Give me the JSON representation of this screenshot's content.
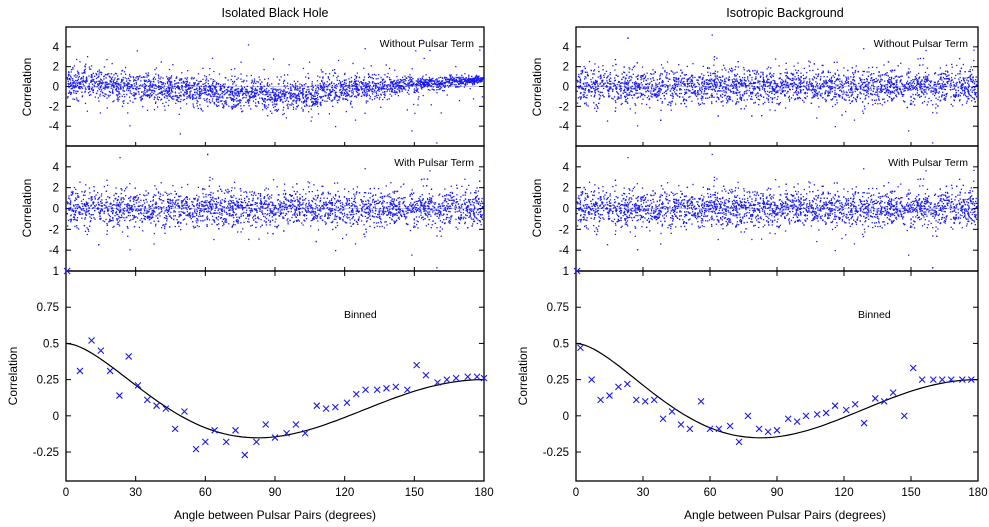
{
  "figure": {
    "xlabel": "Angle between Pulsar Pairs (degrees)",
    "ylabel": "Correlation"
  },
  "colors": {
    "points": "#1a1aee",
    "curve": "#000000",
    "axes": "#000000"
  },
  "chart_data": [
    {
      "column": "left",
      "title": "Isolated Black Hole",
      "panels": [
        {
          "type": "scatter",
          "label": "Without Pulsar Term",
          "xlim": [
            0,
            180
          ],
          "ylim": [
            -6,
            6
          ],
          "yticks": [
            4,
            2,
            0,
            -2,
            -4
          ],
          "xticks": [],
          "grid": false,
          "point_count": 3000,
          "point_note": "dense cloud of small points; spread ~±1.5 near 0 deg, dip toward -1.5 near 60-90 deg, converging to ~0.7 at 180 deg"
        },
        {
          "type": "scatter",
          "label": "With Pulsar Term",
          "xlim": [
            0,
            180
          ],
          "ylim": [
            -6,
            6
          ],
          "yticks": [
            4,
            2,
            0,
            -2,
            -4
          ],
          "xticks": [],
          "grid": false,
          "point_count": 3000
        },
        {
          "type": "scatter",
          "label": "Binned",
          "xlim": [
            0,
            180
          ],
          "ylim": [
            -0.45,
            1.0
          ],
          "yticks": [
            1,
            0.75,
            0.5,
            0.25,
            0,
            -0.25
          ],
          "yticklabels": [
            "1",
            "0.75",
            "0.5",
            "0.25",
            "0",
            "-0.25"
          ],
          "xticks": [
            0,
            30,
            60,
            90,
            120,
            150,
            180
          ],
          "grid": false,
          "series": [
            {
              "name": "binned",
              "marker": "x",
              "x": [
                0.5,
                6,
                11,
                15,
                19,
                23,
                27,
                31,
                35,
                39,
                43,
                47,
                51,
                56,
                60,
                64,
                69,
                73,
                77,
                82,
                86,
                90,
                95,
                99,
                103,
                108,
                112,
                116,
                121,
                125,
                129,
                134,
                138,
                142,
                147,
                151,
                155,
                160,
                164,
                168,
                173,
                177,
                180
              ],
              "y": [
                1.0,
                0.31,
                0.52,
                0.45,
                0.31,
                0.14,
                0.41,
                0.21,
                0.11,
                0.07,
                0.05,
                -0.09,
                0.03,
                -0.23,
                -0.18,
                -0.1,
                -0.18,
                -0.1,
                -0.27,
                -0.18,
                -0.06,
                -0.15,
                -0.12,
                -0.06,
                -0.12,
                0.07,
                0.05,
                0.06,
                0.09,
                0.15,
                0.18,
                0.18,
                0.19,
                0.2,
                0.18,
                0.35,
                0.28,
                0.23,
                0.25,
                0.26,
                0.27,
                0.27,
                0.26
              ]
            },
            {
              "name": "expected",
              "type": "line",
              "function": "Hellings-Downs"
            }
          ]
        }
      ]
    },
    {
      "column": "right",
      "title": "Isotropic Background",
      "panels": [
        {
          "type": "scatter",
          "label": "Without Pulsar Term",
          "xlim": [
            0,
            180
          ],
          "ylim": [
            -6,
            6
          ],
          "yticks": [
            4,
            2,
            0,
            -2,
            -4
          ],
          "xticks": [],
          "grid": false,
          "point_count": 3000
        },
        {
          "type": "scatter",
          "label": "With Pulsar Term",
          "xlim": [
            0,
            180
          ],
          "ylim": [
            -6,
            6
          ],
          "yticks": [
            4,
            2,
            0,
            -2,
            -4
          ],
          "xticks": [],
          "grid": false,
          "point_count": 3000
        },
        {
          "type": "scatter",
          "label": "Binned",
          "xlim": [
            0,
            180
          ],
          "ylim": [
            -0.45,
            1.0
          ],
          "yticks": [
            1,
            0.75,
            0.5,
            0.25,
            0,
            -0.25
          ],
          "yticklabels": [
            "1",
            "0.75",
            "0.5",
            "0.25",
            "0",
            "-0.25"
          ],
          "xticks": [
            0,
            30,
            60,
            90,
            120,
            150,
            180
          ],
          "grid": false,
          "series": [
            {
              "name": "binned",
              "marker": "x",
              "x": [
                0.5,
                2,
                7,
                11,
                15,
                19,
                23,
                27,
                31,
                35,
                39,
                43,
                47,
                51,
                56,
                60,
                64,
                69,
                73,
                77,
                82,
                86,
                90,
                95,
                99,
                103,
                108,
                112,
                116,
                121,
                125,
                129,
                134,
                138,
                142,
                147,
                151,
                155,
                160,
                164,
                168,
                173,
                177
              ],
              "y": [
                1.0,
                0.47,
                0.25,
                0.11,
                0.14,
                0.2,
                0.22,
                0.11,
                0.1,
                0.11,
                -0.02,
                0.03,
                -0.06,
                -0.09,
                0.1,
                -0.09,
                -0.09,
                -0.07,
                -0.18,
                0.0,
                -0.09,
                -0.11,
                -0.1,
                -0.02,
                -0.04,
                0.0,
                0.01,
                0.02,
                0.07,
                0.04,
                0.08,
                -0.05,
                0.12,
                0.1,
                0.16,
                0.0,
                0.33,
                0.25,
                0.25,
                0.25,
                0.25,
                0.25,
                0.25
              ]
            },
            {
              "name": "expected",
              "type": "line",
              "function": "Hellings-Downs"
            }
          ]
        }
      ]
    }
  ]
}
